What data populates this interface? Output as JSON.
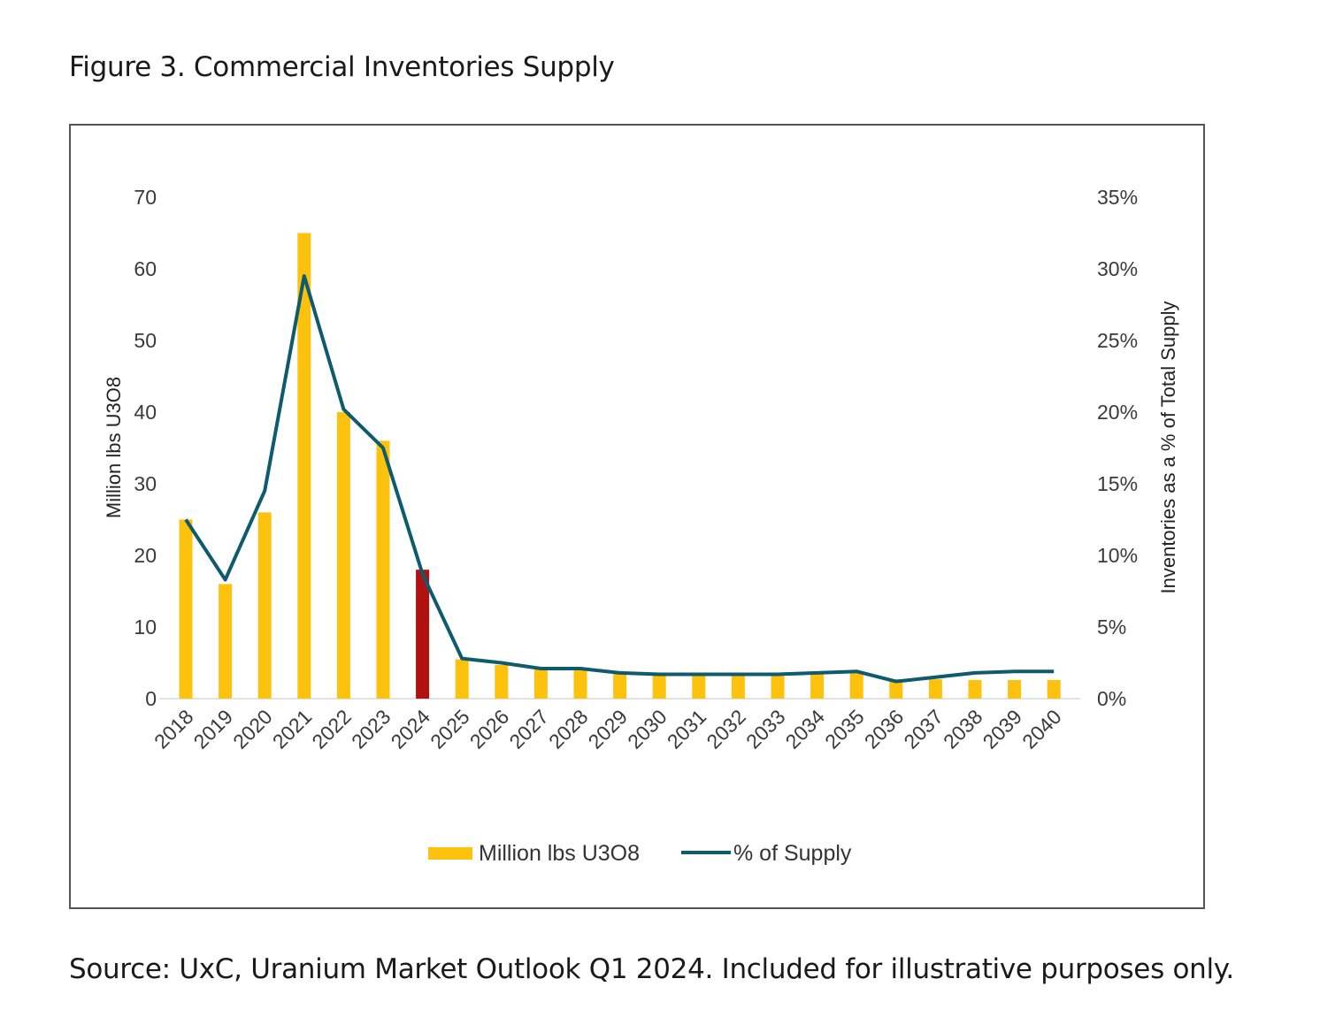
{
  "figure_title": "Figure 3. Commercial Inventories Supply",
  "source_note": "Source: UxC, Uranium Market Outlook Q1 2024. Included for illustrative purposes only.",
  "colors": {
    "bar": "#FDC20E",
    "highlight_bar": "#B01212",
    "line": "#0E5A6E",
    "frame": "#555555"
  },
  "chart_data": {
    "type": "bar",
    "categories": [
      "2018",
      "2019",
      "2020",
      "2021",
      "2022",
      "2023",
      "2024",
      "2025",
      "2026",
      "2027",
      "2028",
      "2029",
      "2030",
      "2031",
      "2032",
      "2033",
      "2034",
      "2035",
      "2036",
      "2037",
      "2038",
      "2039",
      "2040"
    ],
    "highlight_category": "2024",
    "ylabel": "Million lbs U3O8",
    "y2label": "Inventories  as a % of Total Supply",
    "ylim": [
      0,
      70
    ],
    "y_ticks": [
      "0",
      "10",
      "20",
      "30",
      "40",
      "50",
      "60",
      "70"
    ],
    "y2lim": [
      0,
      35
    ],
    "y2_ticks": [
      "0%",
      "5%",
      "10%",
      "15%",
      "20%",
      "25%",
      "30%",
      "35%"
    ],
    "series": [
      {
        "name": "Million lbs U3O8",
        "type": "bar",
        "axis": "left",
        "values": [
          25,
          16,
          26,
          65,
          40,
          36,
          18,
          5.5,
          4.7,
          4.2,
          4.1,
          3.7,
          3.3,
          3.3,
          3.3,
          3.3,
          3.5,
          3.7,
          2.7,
          2.7,
          2.6,
          2.6,
          2.6
        ]
      },
      {
        "name": "% of Supply",
        "type": "line",
        "axis": "right",
        "values": [
          12.5,
          8.3,
          14.5,
          29.5,
          20.2,
          17.5,
          8.7,
          2.8,
          2.5,
          2.1,
          2.1,
          1.8,
          1.7,
          1.7,
          1.7,
          1.7,
          1.8,
          1.9,
          1.2,
          1.5,
          1.8,
          1.9,
          1.9
        ]
      }
    ],
    "legend_position": "bottom"
  }
}
